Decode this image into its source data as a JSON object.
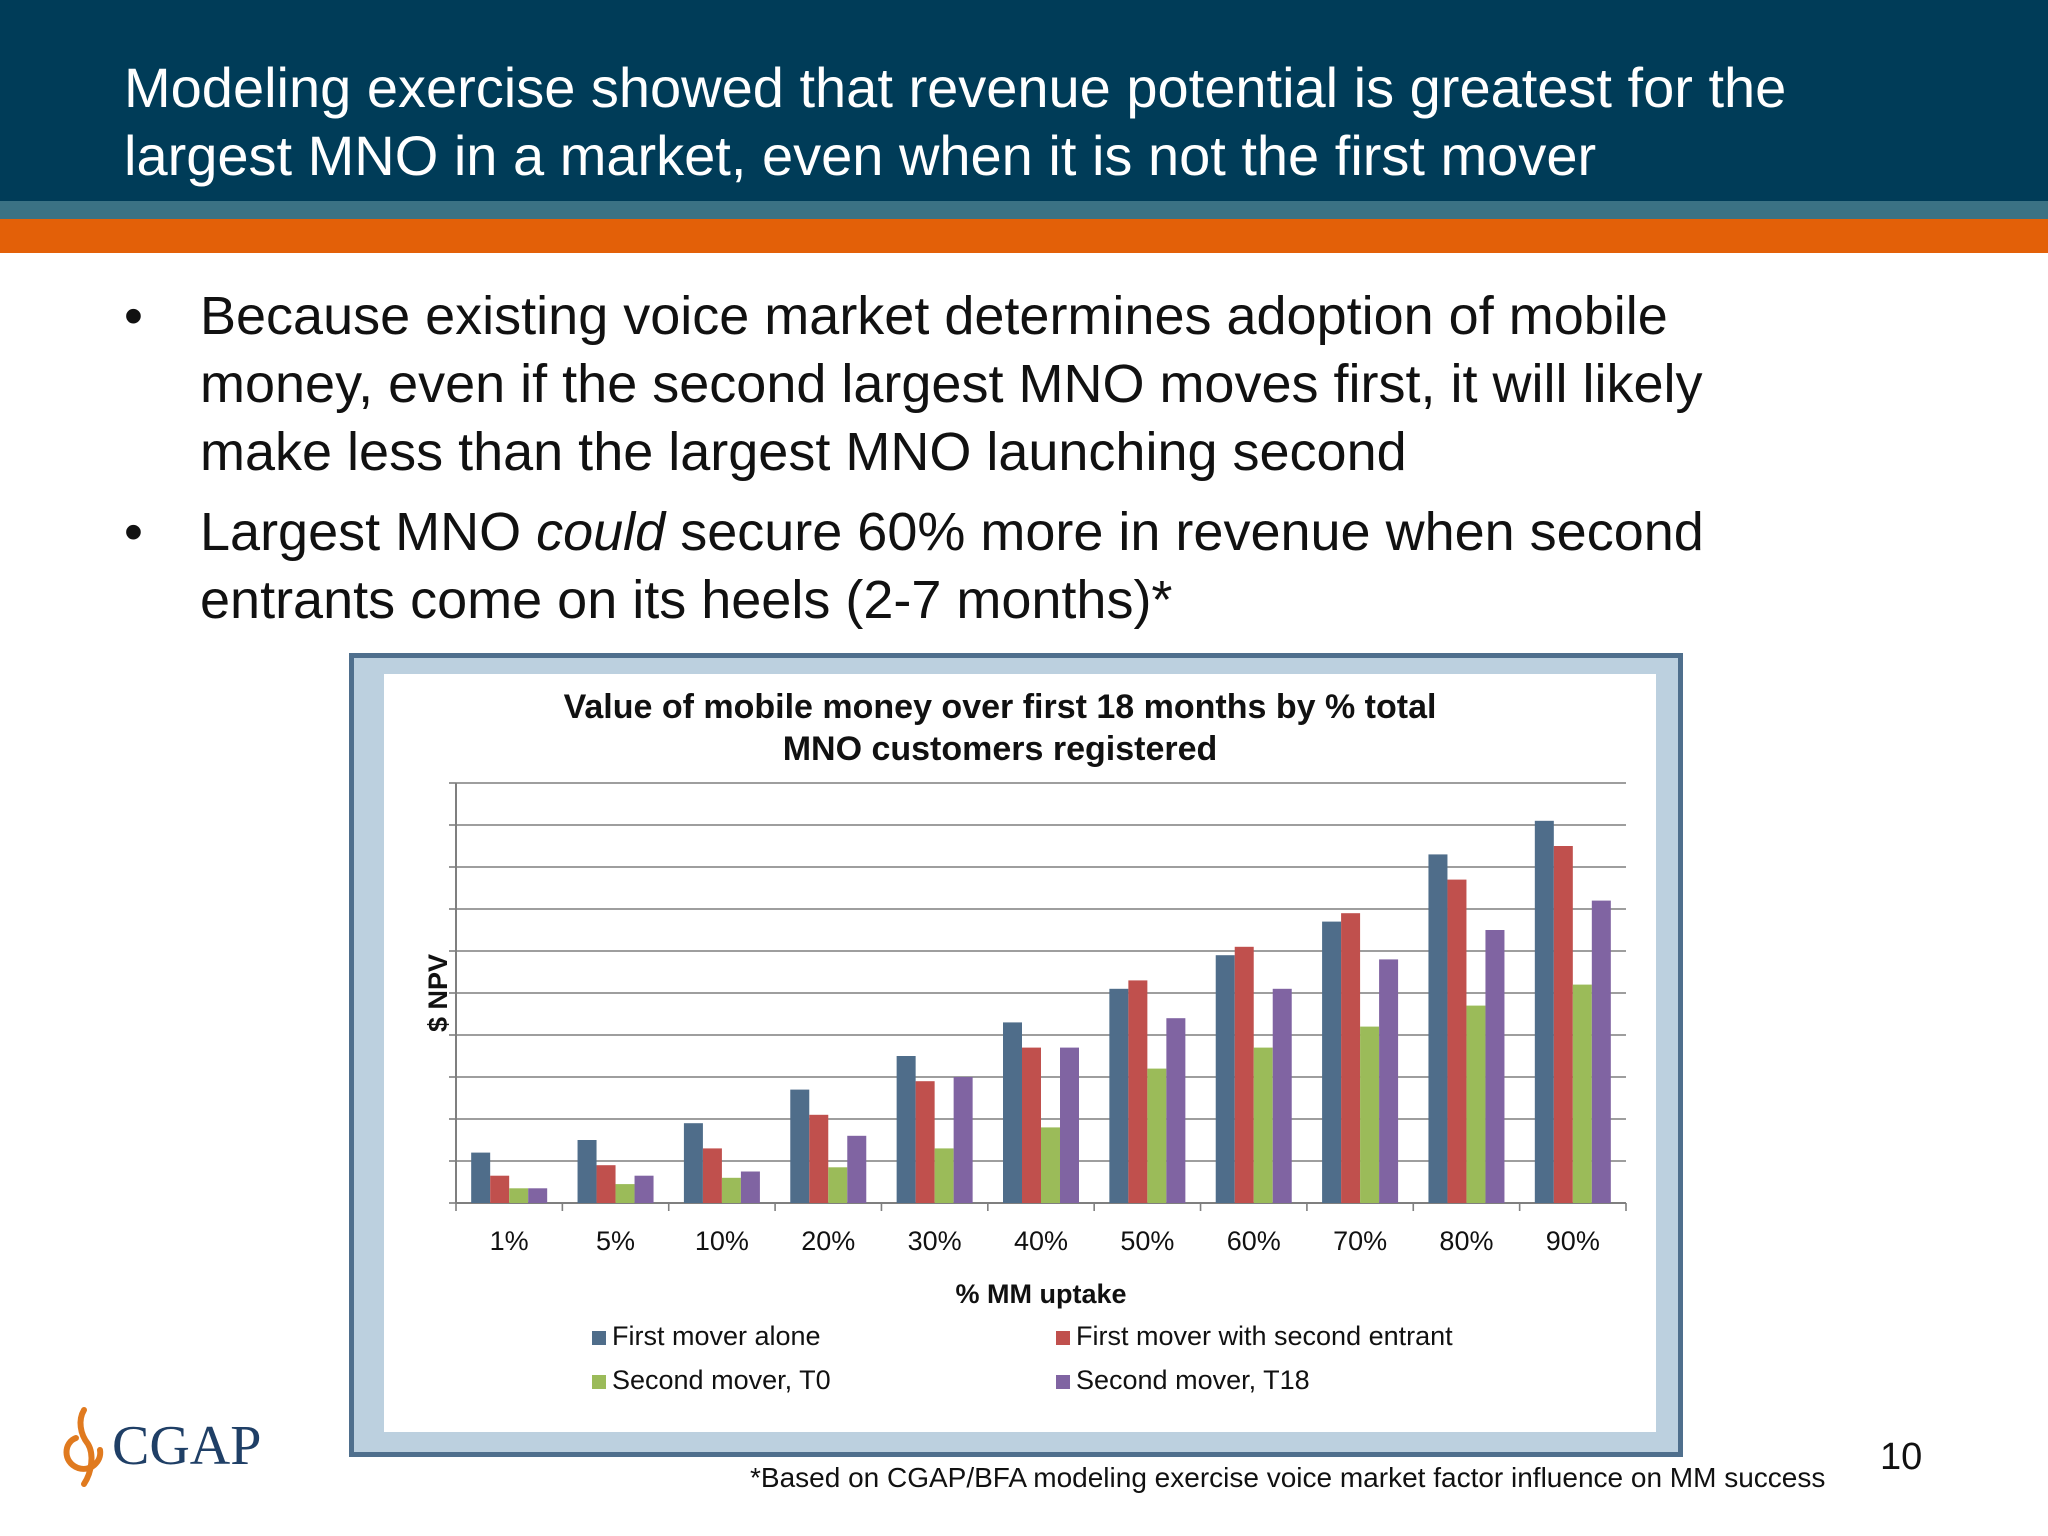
{
  "slide": {
    "title_line1": "Modeling exercise showed that revenue potential is greatest for the",
    "title_line2": "largest MNO in a market, even when it is not the first mover",
    "bullets": [
      {
        "line1": "Because existing voice market determines adoption of mobile",
        "line2": "money, even if the second largest MNO moves first, it will likely",
        "line3": "make less than the largest MNO launching second"
      },
      {
        "pre": "Largest MNO ",
        "em": "could",
        "post": " secure 60% more in revenue when second",
        "line2": "entrants come on its heels (2-7 months)*"
      }
    ],
    "bullet_glyph": "•",
    "logo_text": "CGAP",
    "page_number": "10",
    "footnote": "*Based on CGAP/BFA modeling exercise voice market factor influence on MM success"
  },
  "colors": {
    "header": "#003c58",
    "stripe_teal": "#3b7284",
    "stripe_orange": "#e36008",
    "chart_frame": "#4f6f8d",
    "chart_frame_fill": "#bcd0df",
    "logo_orange": "#e07a1f",
    "logo_navy": "#1f3f66"
  },
  "chart_data": {
    "type": "bar",
    "title_line1": "Value of mobile money over first 18 months by % total",
    "title_line2": "MNO customers registered",
    "xlabel": "% MM uptake",
    "ylabel": "$ NPV",
    "categories": [
      "1%",
      "5%",
      "10%",
      "20%",
      "30%",
      "40%",
      "50%",
      "60%",
      "70%",
      "80%",
      "90%"
    ],
    "ylim": [
      0,
      10
    ],
    "y_tick_labels_shown": false,
    "grid": true,
    "legend_position": "bottom",
    "series": [
      {
        "name": "First mover alone",
        "color": "#4f6d8a",
        "values": [
          1.2,
          1.5,
          1.9,
          2.7,
          3.5,
          4.3,
          5.1,
          5.9,
          6.7,
          8.3,
          9.1
        ]
      },
      {
        "name": "First mover with second entrant",
        "color": "#c0504d",
        "values": [
          0.65,
          0.9,
          1.3,
          2.1,
          2.9,
          3.7,
          5.3,
          6.1,
          6.9,
          7.7,
          8.5
        ]
      },
      {
        "name": "Second mover, T0",
        "color": "#9bbb59",
        "values": [
          0.35,
          0.45,
          0.6,
          0.85,
          1.3,
          1.8,
          3.2,
          3.7,
          4.2,
          4.7,
          5.2
        ]
      },
      {
        "name": "Second mover, T18",
        "color": "#8064a2",
        "values": [
          0.35,
          0.65,
          0.75,
          1.6,
          3.0,
          3.7,
          4.4,
          5.1,
          5.8,
          6.5,
          7.2
        ]
      }
    ]
  }
}
